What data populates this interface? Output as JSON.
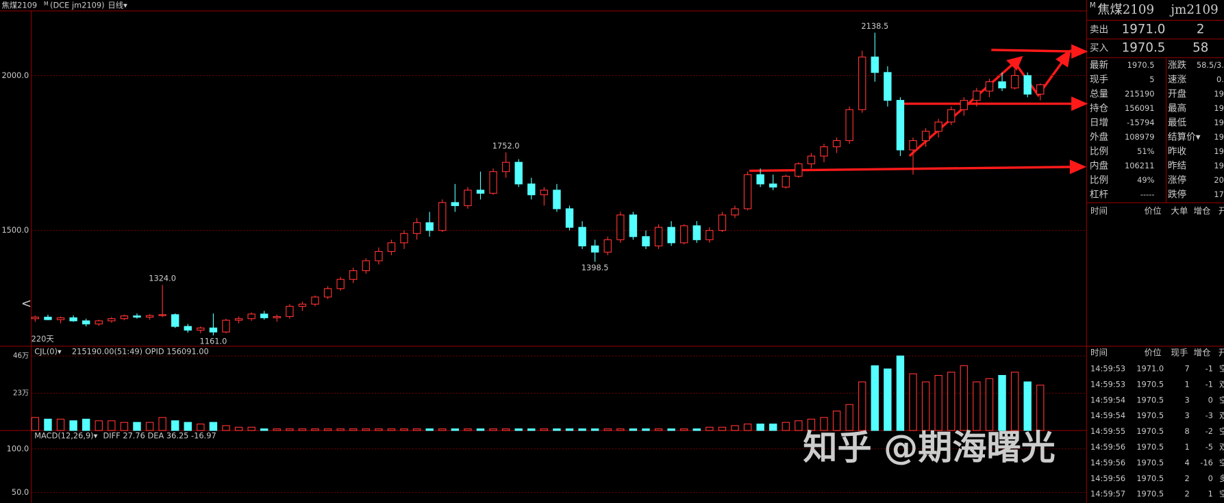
{
  "header": {
    "title": "焦煤2109",
    "badge": "M",
    "detail": "(DCE jm2109)",
    "period": "日线▾"
  },
  "chart_data": [
    {
      "type": "candlestick",
      "period_label": "220天",
      "up_color": "#ff3232",
      "down_color": "#54ffff",
      "ylim": [
        1126,
        2244
      ],
      "yticks": [
        {
          "value": 1500,
          "label": "1500.0"
        },
        {
          "value": 2000,
          "label": "2000.0"
        }
      ],
      "annotations": [
        {
          "text": "1324.0",
          "candle": 10
        },
        {
          "text": "1161.0",
          "candle": 14
        },
        {
          "text": "1752.0",
          "candle": 37
        },
        {
          "text": "1398.5",
          "candle": 44
        },
        {
          "text": "2138.5",
          "candle": 66
        }
      ],
      "ohlc": [
        [
          1215,
          1225,
          1205,
          1220
        ],
        [
          1220,
          1228,
          1210,
          1212
        ],
        [
          1212,
          1222,
          1200,
          1218
        ],
        [
          1218,
          1226,
          1205,
          1208
        ],
        [
          1208,
          1215,
          1190,
          1198
        ],
        [
          1198,
          1212,
          1192,
          1208
        ],
        [
          1208,
          1220,
          1202,
          1215
        ],
        [
          1215,
          1228,
          1210,
          1224
        ],
        [
          1224,
          1232,
          1215,
          1220
        ],
        [
          1220,
          1230,
          1212,
          1225
        ],
        [
          1225,
          1324,
          1220,
          1228
        ],
        [
          1228,
          1232,
          1185,
          1190
        ],
        [
          1190,
          1198,
          1170,
          1178
        ],
        [
          1178,
          1190,
          1168,
          1185
        ],
        [
          1185,
          1232,
          1161,
          1172
        ],
        [
          1172,
          1215,
          1168,
          1210
        ],
        [
          1210,
          1222,
          1200,
          1215
        ],
        [
          1215,
          1235,
          1208,
          1230
        ],
        [
          1230,
          1240,
          1212,
          1218
        ],
        [
          1218,
          1228,
          1205,
          1222
        ],
        [
          1222,
          1262,
          1215,
          1255
        ],
        [
          1255,
          1270,
          1240,
          1262
        ],
        [
          1262,
          1290,
          1255,
          1285
        ],
        [
          1285,
          1320,
          1278,
          1312
        ],
        [
          1312,
          1350,
          1305,
          1342
        ],
        [
          1342,
          1380,
          1330,
          1370
        ],
        [
          1370,
          1410,
          1360,
          1402
        ],
        [
          1402,
          1445,
          1390,
          1432
        ],
        [
          1432,
          1470,
          1420,
          1460
        ],
        [
          1460,
          1500,
          1440,
          1490
        ],
        [
          1490,
          1540,
          1470,
          1525
        ],
        [
          1525,
          1560,
          1480,
          1500
        ],
        [
          1500,
          1600,
          1495,
          1590
        ],
        [
          1590,
          1650,
          1560,
          1580
        ],
        [
          1580,
          1640,
          1570,
          1630
        ],
        [
          1630,
          1690,
          1600,
          1620
        ],
        [
          1620,
          1700,
          1615,
          1690
        ],
        [
          1690,
          1752,
          1670,
          1720
        ],
        [
          1720,
          1730,
          1640,
          1650
        ],
        [
          1650,
          1670,
          1600,
          1615
        ],
        [
          1615,
          1640,
          1580,
          1630
        ],
        [
          1630,
          1650,
          1560,
          1570
        ],
        [
          1570,
          1580,
          1500,
          1510
        ],
        [
          1510,
          1530,
          1440,
          1450
        ],
        [
          1450,
          1470,
          1398.5,
          1430
        ],
        [
          1430,
          1480,
          1420,
          1470
        ],
        [
          1470,
          1560,
          1460,
          1550
        ],
        [
          1550,
          1560,
          1470,
          1480
        ],
        [
          1480,
          1500,
          1440,
          1450
        ],
        [
          1450,
          1520,
          1440,
          1510
        ],
        [
          1510,
          1530,
          1450,
          1460
        ],
        [
          1460,
          1520,
          1455,
          1515
        ],
        [
          1515,
          1530,
          1460,
          1470
        ],
        [
          1470,
          1510,
          1460,
          1500
        ],
        [
          1500,
          1560,
          1495,
          1550
        ],
        [
          1550,
          1580,
          1540,
          1570
        ],
        [
          1570,
          1690,
          1565,
          1680
        ],
        [
          1680,
          1700,
          1640,
          1650
        ],
        [
          1650,
          1680,
          1630,
          1640
        ],
        [
          1640,
          1680,
          1635,
          1675
        ],
        [
          1675,
          1720,
          1670,
          1715
        ],
        [
          1715,
          1750,
          1700,
          1740
        ],
        [
          1740,
          1780,
          1720,
          1770
        ],
        [
          1770,
          1800,
          1750,
          1790
        ],
        [
          1790,
          1900,
          1780,
          1890
        ],
        [
          1890,
          2080,
          1880,
          2060
        ],
        [
          2060,
          2138.5,
          1980,
          2010
        ],
        [
          2010,
          2030,
          1900,
          1920
        ],
        [
          1920,
          1930,
          1740,
          1760
        ],
        [
          1760,
          1800,
          1680,
          1790
        ],
        [
          1790,
          1830,
          1770,
          1820
        ],
        [
          1820,
          1860,
          1800,
          1850
        ],
        [
          1850,
          1900,
          1840,
          1890
        ],
        [
          1890,
          1930,
          1870,
          1920
        ],
        [
          1920,
          1960,
          1900,
          1950
        ],
        [
          1950,
          1990,
          1930,
          1980
        ],
        [
          1980,
          2010,
          1950,
          1960
        ],
        [
          1960,
          2020,
          1955,
          2000
        ],
        [
          2000,
          2010,
          1930,
          1940
        ],
        [
          1940,
          1975,
          1920,
          1970.5
        ]
      ]
    },
    {
      "type": "volume",
      "title": "CJL(0)▾",
      "subtitle": "215190.00(51:49)  OPID 156091.00",
      "ylim": [
        0,
        52
      ],
      "yticks": [
        {
          "value": 46,
          "label": "46万"
        },
        {
          "value": 23,
          "label": "23万"
        }
      ],
      "values": [
        8,
        7,
        7,
        6,
        7,
        6,
        6,
        5,
        5,
        5,
        8,
        6,
        5,
        4,
        5,
        3,
        2,
        2,
        1,
        1,
        1,
        1,
        1,
        1,
        1,
        1,
        1,
        1,
        1,
        1,
        1,
        1,
        1,
        1,
        1,
        1,
        1,
        1,
        1,
        1,
        1,
        1,
        1,
        1,
        1,
        1,
        1,
        1,
        1,
        1,
        1,
        1,
        1,
        2,
        2,
        3,
        4,
        4,
        4,
        5,
        6,
        7,
        8,
        12,
        16,
        30,
        40,
        38,
        46,
        35,
        30,
        34,
        36,
        40,
        30,
        32,
        34,
        36,
        30,
        28
      ]
    },
    {
      "type": "macd",
      "title": "MACD(12,26,9)▾",
      "subtitle": "DIFF 27.76  DEA 36.25  -16.97",
      "ylim": [
        38,
        121
      ],
      "yticks": [
        {
          "value": 100,
          "label": "100.0"
        },
        {
          "value": 50,
          "label": "50.0"
        }
      ]
    }
  ],
  "quote": {
    "badge": "M",
    "name": "焦煤2109",
    "code": "jm2109",
    "book": [
      [
        "卖出",
        "1971.0",
        "2"
      ],
      [
        "买入",
        "1970.5",
        "58"
      ]
    ],
    "rows": [
      [
        "最新",
        "1970.5",
        "涨跌",
        "58.5/3."
      ],
      [
        "现手",
        "5",
        "速涨",
        "0."
      ],
      [
        "总量",
        "215190",
        "开盘",
        "19"
      ],
      [
        "持仓",
        "156091",
        "最高",
        "19"
      ],
      [
        "日增",
        "-15794",
        "最低",
        "19"
      ],
      [
        "外盘",
        "108979",
        "结算价▾",
        "19"
      ],
      [
        "比例",
        "51%",
        "昨收",
        "19"
      ],
      [
        "内盘",
        "106211",
        "昨结",
        "19"
      ],
      [
        "比例",
        "49%",
        "涨停",
        "20"
      ],
      [
        "杠杆",
        "-----",
        "跌停",
        "17"
      ]
    ],
    "tick_header": [
      "时间",
      "价位",
      "大单",
      "增仓",
      "开"
    ],
    "trades_header": [
      "时间",
      "价位",
      "现手",
      "增仓",
      "开"
    ],
    "trades": [
      [
        "14:59:53",
        "1971.0",
        "7",
        "-1",
        "空"
      ],
      [
        "14:59:53",
        "1970.5",
        "1",
        "-1",
        "双"
      ],
      [
        "14:59:54",
        "1970.5",
        "3",
        "0",
        "空"
      ],
      [
        "14:59:54",
        "1970.5",
        "3",
        "-3",
        "双"
      ],
      [
        "14:59:55",
        "1970.5",
        "8",
        "-2",
        "空"
      ],
      [
        "14:59:56",
        "1970.5",
        "1",
        "-5",
        "双"
      ],
      [
        "14:59:56",
        "1970.5",
        "4",
        "-16",
        "空"
      ],
      [
        "14:59:56",
        "1970.5",
        "2",
        "0",
        "多"
      ],
      [
        "14:59:57",
        "1970.5",
        "2",
        "1",
        "空"
      ]
    ]
  },
  "watermark": "知乎 @期海曙光"
}
